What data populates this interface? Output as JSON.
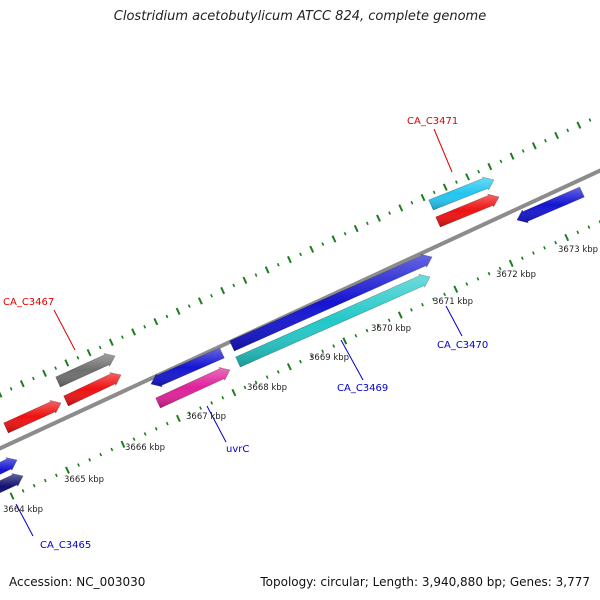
{
  "title": "Clostridium acetobutylicum ATCC 824, complete genome",
  "footer": {
    "accession": "Accession: NC_003030",
    "summary": "Topology: circular; Length: 3,940,880 bp; Genes: 3,777"
  },
  "colors": {
    "backbone": "#8c8c8c",
    "tick": "#1e7d1e",
    "red_label": "#e00000",
    "blue_label": "#0000cc",
    "blue_gene": "#1414d2",
    "red_gene": "#ee1111",
    "gray_gene": "#6e6e6e",
    "cyan_gene": "#22c8c8",
    "sky_gene": "#22c6f2",
    "pink_gene": "#e0209a",
    "navy_gene": "#101070"
  },
  "scale_labels": [
    "3664 kbp",
    "3665 kbp",
    "3666 kbp",
    "3667 kbp",
    "3668 kbp",
    "3669 kbp",
    "3670 kbp",
    "3671 kbp",
    "3672 kbp",
    "3673 kbp"
  ],
  "gene_labels": [
    {
      "text": "CA_C3471",
      "color": "red_label"
    },
    {
      "text": "CA_C3467",
      "color": "red_label"
    },
    {
      "text": "CA_C3470",
      "color": "blue_label"
    },
    {
      "text": "CA_C3469",
      "color": "blue_label"
    },
    {
      "text": "uvrC",
      "color": "blue_label"
    },
    {
      "text": "CA_C3465",
      "color": "blue_label"
    }
  ]
}
